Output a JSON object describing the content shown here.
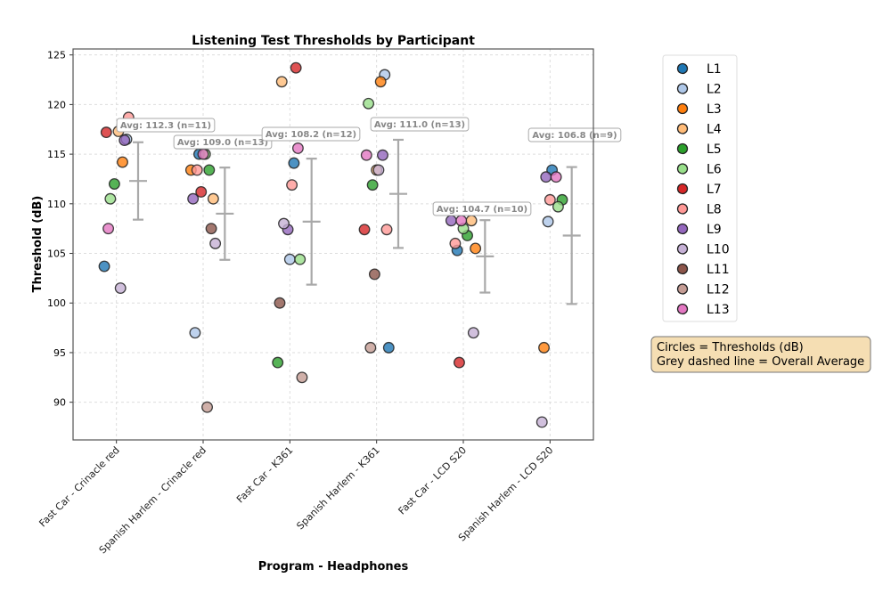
{
  "chart_data": {
    "type": "scatter",
    "title": "Listening Test Thresholds by Participant",
    "xlabel": "Program - Headphones",
    "ylabel": "Threshold (dB)",
    "ylim": [
      86.2,
      125.6
    ],
    "xlim": [
      -0.5,
      5.5
    ],
    "yticks": [
      90,
      95,
      100,
      105,
      110,
      115,
      120,
      125
    ],
    "grid": true,
    "legend_placement": "outside-right",
    "categories": [
      "Fast Car - Crinacle red",
      "Spanish Harlem - Crinacle red",
      "Fast Car - K361",
      "Spanish Harlem - K361",
      "Fast Car - LCD S20",
      "Spanish Harlem - LCD S20"
    ],
    "series": [
      {
        "name": "L1",
        "color": "#1f77b4",
        "values": [
          103.7,
          115.0,
          114.1,
          95.5,
          105.3,
          113.4
        ]
      },
      {
        "name": "L2",
        "color": "#aec7e8",
        "values": [
          116.5,
          97.0,
          104.4,
          123.0,
          null,
          108.2
        ]
      },
      {
        "name": "L3",
        "color": "#ff7f0e",
        "values": [
          114.2,
          113.4,
          null,
          122.3,
          105.5,
          95.5
        ]
      },
      {
        "name": "L4",
        "color": "#ffbb78",
        "values": [
          117.3,
          110.5,
          122.3,
          113.4,
          108.3,
          null
        ]
      },
      {
        "name": "L5",
        "color": "#2ca02c",
        "values": [
          112.0,
          113.4,
          94.0,
          111.9,
          106.8,
          110.4
        ]
      },
      {
        "name": "L6",
        "color": "#98df8a",
        "values": [
          110.5,
          115.0,
          104.4,
          120.1,
          107.5,
          109.7
        ]
      },
      {
        "name": "L7",
        "color": "#d62728",
        "values": [
          117.2,
          111.2,
          123.7,
          107.4,
          94.0,
          null
        ]
      },
      {
        "name": "L8",
        "color": "#ff9896",
        "values": [
          118.7,
          113.4,
          111.9,
          107.4,
          106.0,
          110.4
        ]
      },
      {
        "name": "L9",
        "color": "#9467bd",
        "values": [
          116.4,
          110.5,
          107.4,
          114.9,
          108.3,
          112.7
        ]
      },
      {
        "name": "L10",
        "color": "#c5b0d5",
        "values": [
          101.5,
          106.0,
          108.0,
          113.4,
          97.0,
          88.0
        ]
      },
      {
        "name": "L11",
        "color": "#8c564b",
        "values": [
          null,
          107.5,
          100.0,
          102.9,
          null,
          null
        ]
      },
      {
        "name": "L12",
        "color": "#c49c94",
        "values": [
          null,
          89.5,
          92.5,
          95.5,
          null,
          null
        ]
      },
      {
        "name": "L13",
        "color": "#e377c2",
        "values": [
          107.5,
          115.0,
          115.6,
          114.9,
          108.3,
          112.7
        ]
      }
    ],
    "averages": [
      {
        "mean": 112.3,
        "n": 11,
        "err": 3.9,
        "label": "Avg: 112.3 (n=11)"
      },
      {
        "mean": 109.0,
        "n": 13,
        "err": 4.65,
        "label": "Avg: 109.0 (n=13)"
      },
      {
        "mean": 108.2,
        "n": 12,
        "err": 6.35,
        "label": "Avg: 108.2 (n=12)"
      },
      {
        "mean": 111.0,
        "n": 13,
        "err": 5.45,
        "label": "Avg: 111.0 (n=13)"
      },
      {
        "mean": 104.7,
        "n": 10,
        "err": 3.65,
        "label": "Avg: 104.7 (n=10)"
      },
      {
        "mean": 106.8,
        "n": 9,
        "err": 6.9,
        "label": "Avg: 106.8 (n=9)"
      }
    ],
    "annotation_box": [
      "Circles = Thresholds (dB)",
      "Grey dashed line = Overall Average"
    ],
    "annotation_box_color": "#f5deb3",
    "avg_color": "#a9a9a9"
  }
}
